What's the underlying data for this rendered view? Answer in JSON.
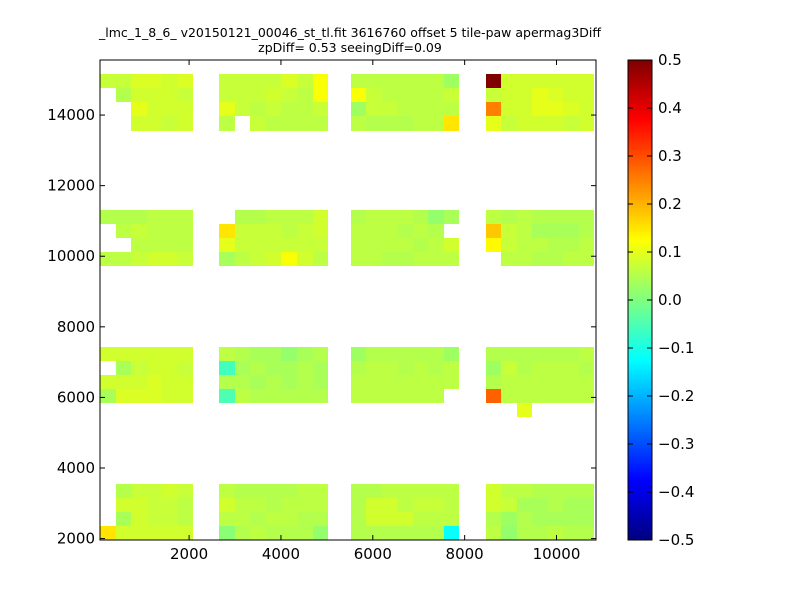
{
  "chart_data": {
    "type": "heatmap",
    "title_line1": "_lmc_1_8_6_ v20150121_00046_st_tl.fit 3616760 offset 5 tile-paw apermag3Diff",
    "title_line2": "zpDiff= 0.53 seeingDiff=0.09",
    "xlabel": "",
    "ylabel": "",
    "xlim": [
      60,
      10860
    ],
    "ylim": [
      1960,
      15560
    ],
    "xticks": [
      2000,
      4000,
      6000,
      8000,
      10000
    ],
    "yticks": [
      2000,
      4000,
      6000,
      8000,
      10000,
      12000,
      14000
    ],
    "color_range": [
      -0.5,
      0.5
    ],
    "colorbar_ticks": [
      0.5,
      0.4,
      0.3,
      0.2,
      0.1,
      0.0,
      -0.1,
      -0.2,
      -0.3,
      -0.4,
      -0.5
    ],
    "colormap": "jet",
    "grid": false,
    "cell_size": {
      "dx": 338,
      "dy": 400
    },
    "blocks": [
      {
        "name": "A1",
        "x_start": 60,
        "y_start": 1960,
        "cols": 6,
        "rows": 4,
        "values": [
          [
            0.15,
            0.08,
            0.08,
            0.08,
            0.08,
            0.08
          ],
          [
            null,
            0.04,
            0.08,
            0.07,
            0.07,
            0.06
          ],
          [
            null,
            0.08,
            0.08,
            0.07,
            0.07,
            0.06
          ],
          [
            null,
            0.05,
            0.07,
            0.07,
            0.08,
            0.07
          ]
        ]
      },
      {
        "name": "A2",
        "x_start": 2660,
        "y_start": 1960,
        "cols": 7,
        "rows": 4,
        "values": [
          [
            0.01,
            0.05,
            0.06,
            0.05,
            0.05,
            0.05,
            0.02
          ],
          [
            0.06,
            0.06,
            0.05,
            0.06,
            0.06,
            0.05,
            0.05
          ],
          [
            0.08,
            0.06,
            0.06,
            0.05,
            0.06,
            0.06,
            0.06
          ],
          [
            0.06,
            0.05,
            0.05,
            0.05,
            0.05,
            0.06,
            0.06
          ]
        ]
      },
      {
        "name": "A3",
        "x_start": 5520,
        "y_start": 1960,
        "cols": 7,
        "rows": 4,
        "values": [
          [
            0.05,
            0.05,
            0.05,
            0.05,
            0.05,
            0.05,
            -0.12
          ],
          [
            0.05,
            0.08,
            0.08,
            0.08,
            0.06,
            0.06,
            0.06
          ],
          [
            0.05,
            0.08,
            0.08,
            0.06,
            0.07,
            0.07,
            0.06
          ],
          [
            0.05,
            0.05,
            0.06,
            0.06,
            0.06,
            0.06,
            0.06
          ]
        ]
      },
      {
        "name": "A4",
        "x_start": 8460,
        "y_start": 1960,
        "cols": 7,
        "rows": 4,
        "values": [
          [
            0.06,
            0.02,
            0.05,
            0.05,
            0.06,
            0.05,
            0.05
          ],
          [
            0.05,
            0.03,
            0.05,
            0.04,
            0.04,
            0.04,
            0.04
          ],
          [
            0.08,
            0.07,
            0.04,
            0.04,
            0.05,
            0.04,
            0.04
          ],
          [
            0.08,
            0.06,
            0.06,
            0.05,
            0.05,
            0.05,
            0.05
          ]
        ]
      },
      {
        "name": "B1",
        "x_start": 60,
        "y_start": 5840,
        "cols": 6,
        "rows": 4,
        "values": [
          [
            0.04,
            0.09,
            0.09,
            0.09,
            0.08,
            0.08
          ],
          [
            0.08,
            0.08,
            0.08,
            0.09,
            0.08,
            0.08
          ],
          [
            null,
            0.04,
            0.07,
            0.08,
            0.08,
            0.07
          ],
          [
            0.08,
            0.08,
            0.08,
            0.08,
            0.08,
            0.08
          ]
        ]
      },
      {
        "name": "B2",
        "x_start": 2660,
        "y_start": 5840,
        "cols": 7,
        "rows": 4,
        "values": [
          [
            -0.05,
            0.06,
            0.05,
            0.05,
            0.05,
            0.05,
            0.05
          ],
          [
            0.05,
            0.05,
            0.04,
            0.05,
            0.04,
            0.05,
            0.04
          ],
          [
            -0.06,
            0.04,
            0.05,
            0.04,
            0.04,
            0.05,
            0.04
          ],
          [
            0.06,
            0.05,
            0.04,
            0.04,
            0.02,
            0.04,
            0.05
          ]
        ]
      },
      {
        "name": "B3",
        "x_start": 5520,
        "y_start": 5840,
        "cols": 7,
        "rows": 4,
        "values": [
          [
            0.06,
            0.06,
            0.06,
            0.06,
            0.06,
            0.06,
            null
          ],
          [
            0.06,
            0.06,
            0.06,
            0.06,
            0.06,
            0.06,
            0.06
          ],
          [
            0.05,
            0.06,
            0.06,
            0.05,
            0.06,
            0.05,
            0.06
          ],
          [
            0.03,
            0.05,
            0.05,
            0.05,
            0.05,
            0.05,
            0.03
          ]
        ]
      },
      {
        "name": "B4",
        "x_start": 8460,
        "y_start": 5840,
        "cols": 7,
        "rows": 4,
        "values": [
          [
            0.28,
            0.06,
            0.06,
            0.06,
            0.06,
            0.06,
            0.06
          ],
          [
            0.05,
            0.06,
            0.06,
            0.06,
            0.06,
            0.06,
            0.06
          ],
          [
            0.03,
            0.07,
            0.05,
            0.06,
            0.06,
            0.06,
            0.05
          ],
          [
            0.05,
            0.05,
            0.05,
            0.05,
            0.05,
            0.05,
            0.06
          ]
        ]
      },
      {
        "name": "B4-extra",
        "x_start": 9136,
        "y_start": 5440,
        "cols": 1,
        "rows": 1,
        "values": [
          [
            0.1
          ]
        ]
      },
      {
        "name": "C1",
        "x_start": 60,
        "y_start": 9720,
        "cols": 6,
        "rows": 4,
        "values": [
          [
            0.06,
            0.06,
            0.07,
            0.08,
            0.08,
            0.07
          ],
          [
            null,
            null,
            0.06,
            0.06,
            0.06,
            0.06
          ],
          [
            null,
            0.06,
            0.07,
            0.06,
            0.06,
            0.06
          ],
          [
            0.05,
            0.05,
            0.05,
            0.06,
            0.06,
            0.06
          ]
        ]
      },
      {
        "name": "C2",
        "x_start": 2660,
        "y_start": 9720,
        "cols": 7,
        "rows": 4,
        "values": [
          [
            0.04,
            0.06,
            0.07,
            0.08,
            0.12,
            0.08,
            0.06
          ],
          [
            0.1,
            0.07,
            0.07,
            0.07,
            0.07,
            0.07,
            0.07
          ],
          [
            0.15,
            0.07,
            0.07,
            0.07,
            0.06,
            0.07,
            0.08
          ],
          [
            null,
            0.05,
            0.05,
            0.06,
            0.06,
            0.06,
            0.08
          ]
        ]
      },
      {
        "name": "C3",
        "x_start": 5520,
        "y_start": 9720,
        "cols": 7,
        "rows": 4,
        "values": [
          [
            0.06,
            0.06,
            0.05,
            0.05,
            0.06,
            0.06,
            0.06
          ],
          [
            0.06,
            0.06,
            0.06,
            0.06,
            0.05,
            0.06,
            0.08
          ],
          [
            0.06,
            0.06,
            0.06,
            0.05,
            0.06,
            0.05,
            null
          ],
          [
            0.05,
            0.06,
            0.06,
            0.06,
            0.05,
            0.02,
            0.04
          ]
        ]
      },
      {
        "name": "C4",
        "x_start": 8460,
        "y_start": 9720,
        "cols": 7,
        "rows": 4,
        "values": [
          [
            null,
            0.06,
            0.06,
            0.05,
            0.05,
            0.06,
            0.06
          ],
          [
            0.13,
            0.07,
            0.06,
            0.06,
            0.05,
            0.05,
            0.06
          ],
          [
            0.18,
            0.07,
            0.06,
            0.04,
            0.04,
            0.04,
            0.05
          ],
          [
            0.06,
            0.05,
            0.06,
            0.05,
            0.05,
            0.05,
            0.05
          ]
        ]
      },
      {
        "name": "D1",
        "x_start": 60,
        "y_start": 13560,
        "cols": 6,
        "rows": 4,
        "values": [
          [
            null,
            null,
            0.08,
            0.08,
            0.07,
            0.08
          ],
          [
            null,
            null,
            0.1,
            0.08,
            0.08,
            0.08
          ],
          [
            null,
            0.05,
            0.08,
            0.08,
            0.08,
            0.07
          ],
          [
            0.07,
            0.07,
            0.09,
            0.09,
            0.08,
            0.09
          ]
        ]
      },
      {
        "name": "D2",
        "x_start": 2660,
        "y_start": 13560,
        "cols": 7,
        "rows": 4,
        "values": [
          [
            0.06,
            null,
            0.07,
            0.06,
            0.06,
            0.06,
            0.06
          ],
          [
            0.1,
            0.07,
            0.06,
            0.07,
            0.06,
            0.06,
            0.07
          ],
          [
            0.07,
            0.07,
            0.07,
            0.08,
            0.07,
            0.06,
            0.12
          ],
          [
            0.07,
            0.07,
            0.07,
            0.07,
            0.09,
            0.07,
            0.12
          ]
        ]
      },
      {
        "name": "D3",
        "x_start": 5520,
        "y_start": 13560,
        "cols": 7,
        "rows": 4,
        "values": [
          [
            0.06,
            0.05,
            0.05,
            0.05,
            0.06,
            0.06,
            0.15
          ],
          [
            0.03,
            0.07,
            0.07,
            0.06,
            0.06,
            0.06,
            0.06
          ],
          [
            0.12,
            0.07,
            0.06,
            0.06,
            0.06,
            0.06,
            0.07
          ],
          [
            0.06,
            0.06,
            0.06,
            0.06,
            0.06,
            0.06,
            0.03
          ]
        ]
      },
      {
        "name": "D4",
        "x_start": 8460,
        "y_start": 13560,
        "cols": 7,
        "rows": 4,
        "values": [
          [
            0.1,
            0.07,
            0.08,
            0.08,
            0.08,
            0.07,
            0.08
          ],
          [
            0.25,
            0.08,
            0.08,
            0.1,
            0.1,
            0.09,
            0.08
          ],
          [
            0.07,
            0.08,
            0.08,
            0.1,
            0.09,
            0.08,
            0.08
          ],
          [
            0.5,
            0.08,
            0.08,
            0.08,
            0.08,
            0.08,
            0.08
          ]
        ]
      }
    ]
  }
}
